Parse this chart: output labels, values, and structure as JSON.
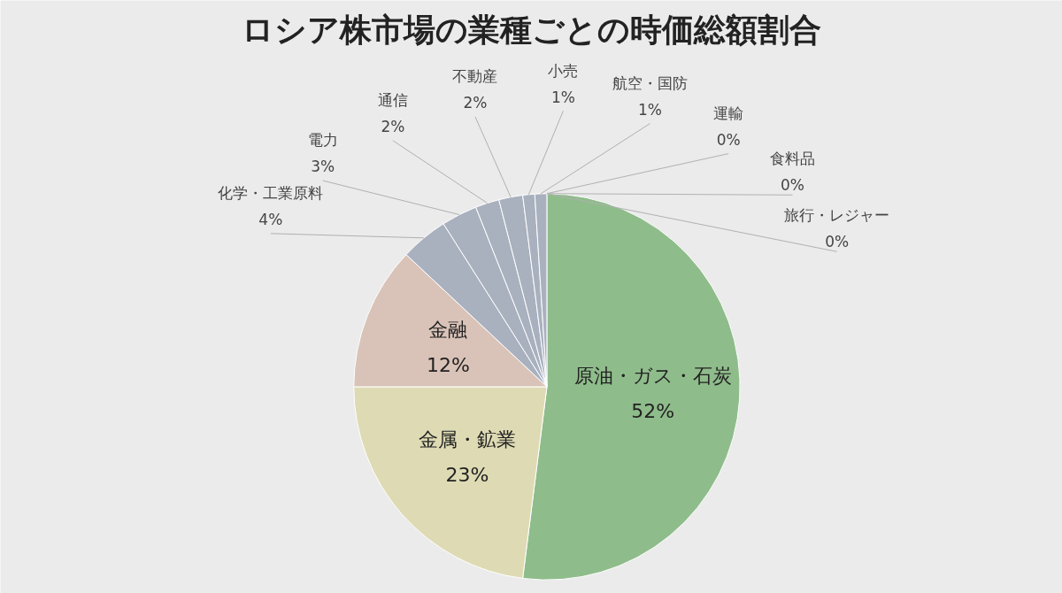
{
  "chart_data": {
    "type": "pie",
    "title": "ロシア株市場の業種ごとの時価総額割合",
    "categories": [
      "原油・ガス・石炭",
      "金属・鉱業",
      "金融",
      "化学・工業原料",
      "電力",
      "通信",
      "不動産",
      "小売",
      "航空・国防",
      "運輸",
      "食料品",
      "旅行・レジャー"
    ],
    "values": [
      52,
      23,
      12,
      4,
      3,
      2,
      2,
      1,
      1,
      0,
      0,
      0
    ],
    "colors": [
      "#8fbc8b",
      "#dedbb4",
      "#d9c3b8",
      "#a9b1bf",
      "#a9b1bf",
      "#a9b1bf",
      "#a9b1bf",
      "#a9b1bf",
      "#a9b1bf",
      "#a9b1bf",
      "#a9b1bf",
      "#a9b1bf"
    ],
    "value_labels": [
      "52%",
      "23%",
      "12%",
      "4%",
      "3%",
      "2%",
      "2%",
      "1%",
      "1%",
      "0%",
      "0%",
      "0%"
    ]
  }
}
